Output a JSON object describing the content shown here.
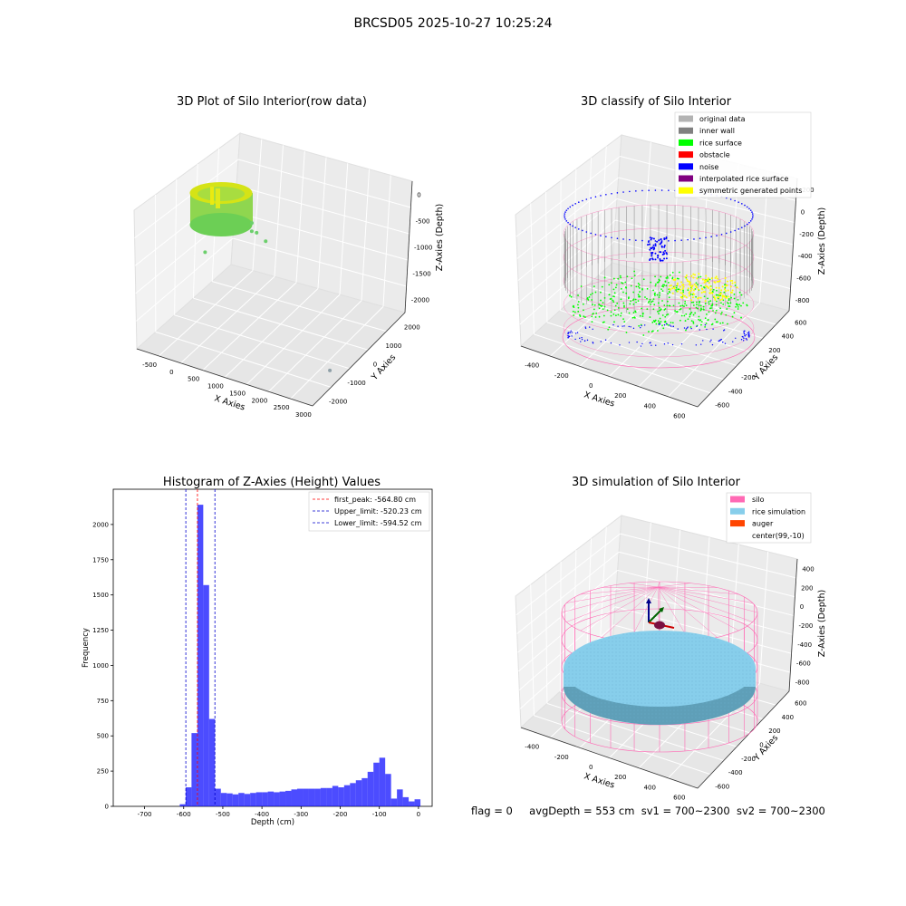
{
  "figure_title": "BRCSD05 2025-10-27 10:25:24",
  "status": {
    "flag": "flag = 0",
    "avg_depth": "avgDepth = 553 cm",
    "sv1": "sv1 = 700~2300",
    "sv2": "sv2 = 700~2300"
  },
  "colors": {
    "original": "#b3b3b3",
    "inner_wall": "#808080",
    "rice_surface": "#00ff00",
    "obstacle": "#ff0000",
    "noise": "#0000ff",
    "interp": "#800080",
    "symmetric": "#ffff00",
    "silo": "#ff69b4",
    "rice_sim": "#87ceeb",
    "auger": "#ff4500",
    "hist_bar": "#0000ff"
  },
  "chart_data": [
    {
      "type": "scatter",
      "title": "3D Plot of Silo Interior(row data)",
      "xlabel": "X Axies",
      "ylabel": "Y Axies",
      "zlabel": "Z-Axies (Depth)",
      "x_ticks": [
        "-500",
        "0",
        "500",
        "1000",
        "1500",
        "2000",
        "2500",
        "3000"
      ],
      "y_ticks": [
        "-2000",
        "-1000",
        "0",
        "1000",
        "2000"
      ],
      "z_ticks": [
        "0",
        "-500",
        "-1000",
        "-1500",
        "-2000"
      ],
      "xlim": [
        -700,
        3200
      ],
      "ylim": [
        -2000,
        2500
      ],
      "zlim": [
        -2300,
        100
      ],
      "outliers": [
        {
          "x": 600,
          "y": 500,
          "z": -600
        },
        {
          "x": 650,
          "y": 400,
          "z": -700
        },
        {
          "x": 800,
          "y": 300,
          "z": -650
        },
        {
          "x": 1050,
          "y": 200,
          "z": -700
        },
        {
          "x": -300,
          "y": 300,
          "z": -1300
        },
        {
          "x": 2900,
          "y": -500,
          "z": -2300
        }
      ]
    },
    {
      "type": "scatter",
      "title": "3D classify of Silo Interior",
      "xlabel": "X Axies",
      "ylabel": "Y Axies",
      "zlabel": "Z-Axies (Depth)",
      "x_ticks": [
        "-400",
        "-200",
        "0",
        "200",
        "400",
        "600"
      ],
      "y_ticks": [
        "-600",
        "-400",
        "-200",
        "0",
        "200",
        "400",
        "600"
      ],
      "z_ticks": [
        "200",
        "0",
        "-200",
        "-400",
        "-600",
        "-800"
      ],
      "legend": [
        "original data",
        "inner wall",
        "rice surface",
        "obstacle",
        "noise",
        "interpolated rice surface",
        "symmetric generated points"
      ],
      "legend_position": "top-right",
      "z_top_visible": "00"
    },
    {
      "type": "bar",
      "title": "Histogram of Z-Axies (Height) Values",
      "xlabel": "Depth (cm)",
      "ylabel": "Frequency",
      "xlim": [
        -780,
        35
      ],
      "ylim": [
        0,
        2250
      ],
      "x_ticks": [
        -700,
        -600,
        -500,
        -400,
        -300,
        -200,
        -100,
        0
      ],
      "y_ticks": [
        0,
        250,
        500,
        750,
        1000,
        1250,
        1500,
        1750,
        2000
      ],
      "bin_width": 15,
      "bins": [
        {
          "x": -610,
          "v": 15
        },
        {
          "x": -595,
          "v": 135
        },
        {
          "x": -580,
          "v": 520
        },
        {
          "x": -565,
          "v": 2140
        },
        {
          "x": -550,
          "v": 1570
        },
        {
          "x": -535,
          "v": 620
        },
        {
          "x": -520,
          "v": 125
        },
        {
          "x": -505,
          "v": 95
        },
        {
          "x": -490,
          "v": 92
        },
        {
          "x": -475,
          "v": 85
        },
        {
          "x": -460,
          "v": 95
        },
        {
          "x": -445,
          "v": 88
        },
        {
          "x": -430,
          "v": 95
        },
        {
          "x": -415,
          "v": 100
        },
        {
          "x": -400,
          "v": 100
        },
        {
          "x": -385,
          "v": 105
        },
        {
          "x": -370,
          "v": 100
        },
        {
          "x": -355,
          "v": 105
        },
        {
          "x": -340,
          "v": 110
        },
        {
          "x": -325,
          "v": 120
        },
        {
          "x": -310,
          "v": 125
        },
        {
          "x": -295,
          "v": 125
        },
        {
          "x": -280,
          "v": 125
        },
        {
          "x": -265,
          "v": 125
        },
        {
          "x": -250,
          "v": 130
        },
        {
          "x": -235,
          "v": 130
        },
        {
          "x": -220,
          "v": 145
        },
        {
          "x": -205,
          "v": 135
        },
        {
          "x": -190,
          "v": 150
        },
        {
          "x": -175,
          "v": 165
        },
        {
          "x": -160,
          "v": 185
        },
        {
          "x": -145,
          "v": 200
        },
        {
          "x": -130,
          "v": 245
        },
        {
          "x": -115,
          "v": 310
        },
        {
          "x": -100,
          "v": 345
        },
        {
          "x": -85,
          "v": 230
        },
        {
          "x": -70,
          "v": 55
        },
        {
          "x": -55,
          "v": 120
        },
        {
          "x": -40,
          "v": 65
        },
        {
          "x": -25,
          "v": 35
        },
        {
          "x": -10,
          "v": 50
        }
      ],
      "lines": [
        {
          "label": "first_peak: -564.80 cm",
          "x": -564.8,
          "color": "#ff0000"
        },
        {
          "label": "Upper_limit: -520.23 cm",
          "x": -520.23,
          "color": "#0000cd"
        },
        {
          "label": "Lower_limit: -594.52 cm",
          "x": -594.52,
          "color": "#0000cd"
        }
      ],
      "legend_position": "top-right"
    },
    {
      "type": "scatter",
      "title": "3D simulation of Silo Interior",
      "xlabel": "X Axies",
      "ylabel": "Y Axies",
      "zlabel": "Z-Axies (Depth)",
      "x_ticks": [
        "-400",
        "-200",
        "0",
        "200",
        "400",
        "600"
      ],
      "y_ticks": [
        "-600",
        "-400",
        "-200",
        "0",
        "200",
        "400",
        "600"
      ],
      "z_ticks": [
        "400",
        "200",
        "0",
        "-200",
        "-400",
        "-600",
        "-800"
      ],
      "legend": [
        "silo",
        "rice simulation",
        "auger",
        "center(99,-10)"
      ],
      "legend_position": "top-right"
    }
  ]
}
